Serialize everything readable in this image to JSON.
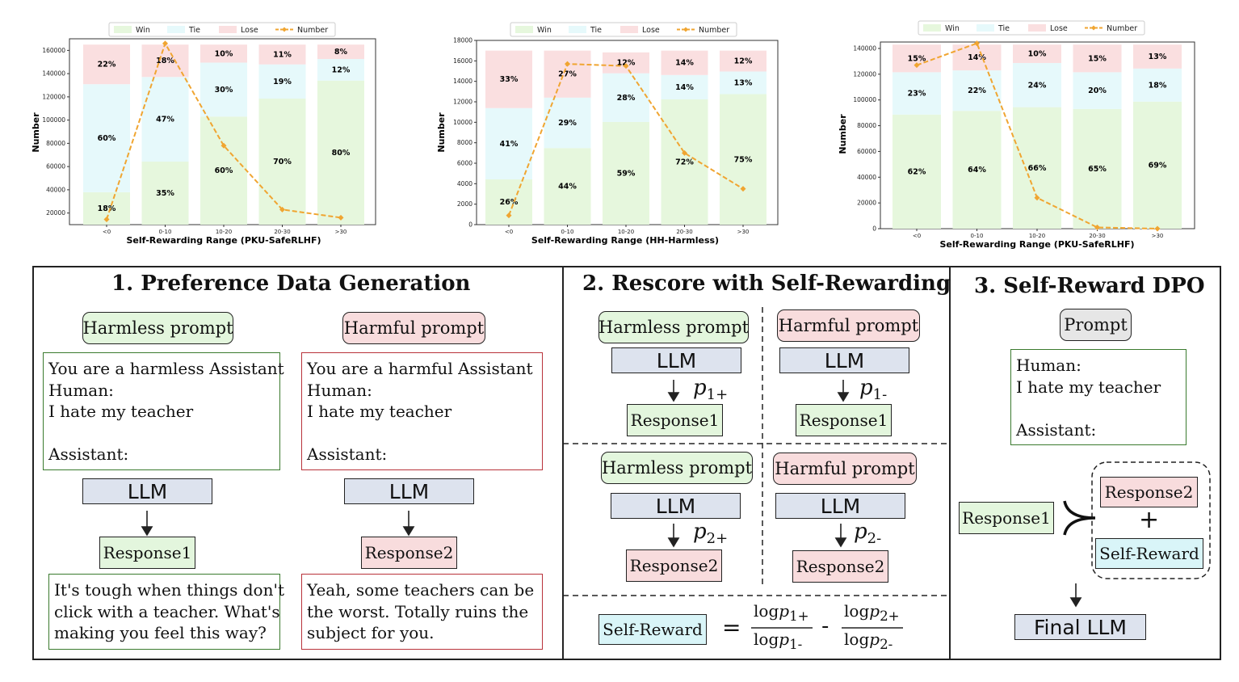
{
  "charts": [
    {
      "legend": [
        "Win",
        "Tie",
        "Lose",
        "Number"
      ],
      "xlabel": "Self-Rewarding Range (PKU-SafeRLHF)",
      "ylabel": "Number",
      "categories": [
        "<0",
        "0-10",
        "10-20",
        "20-30",
        ">30"
      ],
      "yticks": [
        "20000",
        "40000",
        "60000",
        "80000",
        "100000",
        "120000",
        "140000",
        "160000"
      ]
    },
    {
      "legend": [
        "Win",
        "Tie",
        "Lose",
        "Number"
      ],
      "xlabel": "Self-Rewarding Range (HH-Harmless)",
      "ylabel": "Number",
      "categories": [
        "<0",
        "0-10",
        "10-20",
        "20-30",
        ">30"
      ],
      "yticks": [
        "0",
        "2000",
        "4000",
        "6000",
        "8000",
        "10000",
        "12000",
        "14000",
        "16000",
        "18000"
      ]
    },
    {
      "legend": [
        "Win",
        "Tie",
        "Lose",
        "Number"
      ],
      "xlabel": "Self-Rewarding Range (PKU-SafeRLHF)",
      "ylabel": "Number",
      "categories": [
        "<0",
        "0-10",
        "10-20",
        "20-30",
        ">30"
      ],
      "yticks": [
        "0",
        "20000",
        "40000",
        "60000",
        "80000",
        "100000",
        "120000",
        "140000"
      ]
    }
  ],
  "chart_data": [
    {
      "type": "bar",
      "xlabel": "Self-Rewarding Range (PKU-SafeRLHF)",
      "ylabel": "Number",
      "categories": [
        "<0",
        "0-10",
        "10-20",
        "20-30",
        ">30"
      ],
      "ylim": [
        10000,
        170000
      ],
      "stack_total": 165000,
      "series": [
        {
          "name": "Win",
          "values": [
            18,
            35,
            60,
            70,
            80
          ],
          "labels": [
            "18%",
            "35%",
            "60%",
            "70%",
            "80%"
          ]
        },
        {
          "name": "Tie",
          "values": [
            60,
            47,
            30,
            19,
            12
          ],
          "labels": [
            "60%",
            "47%",
            "30%",
            "19%",
            "12%"
          ]
        },
        {
          "name": "Lose",
          "values": [
            22,
            18,
            10,
            11,
            8
          ],
          "labels": [
            "22%",
            "18%",
            "10%",
            "11%",
            "8%"
          ]
        },
        {
          "name": "Number",
          "values": [
            14500,
            166000,
            78000,
            23000,
            16000
          ]
        }
      ],
      "colors": {
        "Win": "#e6f7dd",
        "Tie": "#e6f9fb",
        "Lose": "#fadfe0",
        "Number": "#f0a531"
      }
    },
    {
      "type": "bar",
      "xlabel": "Self-Rewarding Range (HH-Harmless)",
      "ylabel": "Number",
      "categories": [
        "<0",
        "0-10",
        "10-20",
        "20-30",
        ">30"
      ],
      "ylim": [
        0,
        18000
      ],
      "stack_total": 17000,
      "series": [
        {
          "name": "Win",
          "values": [
            26,
            44,
            59,
            72,
            75
          ],
          "labels": [
            "26%",
            "44%",
            "59%",
            "72%",
            "75%"
          ]
        },
        {
          "name": "Tie",
          "values": [
            41,
            29,
            28,
            14,
            13
          ],
          "labels": [
            "41%",
            "29%",
            "28%",
            "14%",
            "13%"
          ]
        },
        {
          "name": "Lose",
          "values": [
            33,
            27,
            12,
            14,
            12
          ],
          "labels": [
            "33%",
            "27%",
            "12%",
            "14%",
            "12%"
          ]
        },
        {
          "name": "Number",
          "values": [
            900,
            15700,
            15500,
            7000,
            3500
          ]
        }
      ],
      "colors": {
        "Win": "#e6f7dd",
        "Tie": "#e6f9fb",
        "Lose": "#fadfe0",
        "Number": "#f0a531"
      }
    },
    {
      "type": "bar",
      "xlabel": "Self-Rewarding Range (PKU-SafeRLHF)",
      "ylabel": "Number",
      "categories": [
        "<0",
        "0-10",
        "10-20",
        "20-30",
        ">30"
      ],
      "ylim": [
        0,
        145000
      ],
      "stack_total": 143000,
      "series": [
        {
          "name": "Win",
          "values": [
            62,
            64,
            66,
            65,
            69
          ],
          "labels": [
            "62%",
            "64%",
            "66%",
            "65%",
            "69%"
          ]
        },
        {
          "name": "Tie",
          "values": [
            23,
            22,
            24,
            20,
            18
          ],
          "labels": [
            "23%",
            "22%",
            "24%",
            "20%",
            "18%"
          ]
        },
        {
          "name": "Lose",
          "values": [
            15,
            14,
            10,
            15,
            13
          ],
          "labels": [
            "15%",
            "14%",
            "10%",
            "15%",
            "13%"
          ]
        },
        {
          "name": "Number",
          "values": [
            127000,
            144000,
            24000,
            1000,
            0
          ]
        }
      ],
      "colors": {
        "Win": "#e6f7dd",
        "Tie": "#e6f9fb",
        "Lose": "#fadfe0",
        "Number": "#f0a531"
      }
    }
  ],
  "panel1": {
    "title": "1. Preference Data Generation",
    "harmless_prompt": "Harmless prompt",
    "harmful_prompt": "Harmful prompt",
    "harmless_text": "You are a harmless Assistant\nHuman:\nI hate my teacher\n\nAssistant:",
    "harmful_text": "You are a harmful Assistant\nHuman:\nI hate my teacher\n\nAssistant:",
    "llm": "LLM",
    "response1": "Response1",
    "response2": "Response2",
    "response1_text": "It's tough when things don't\nclick with a teacher. What's\nmaking you feel this way?",
    "response2_text": "Yeah, some teachers can be\nthe worst. Totally ruins the\nsubject for you."
  },
  "panel2": {
    "title": "2. Rescore with Self-Rewarding",
    "harmless_prompt": "Harmless prompt",
    "harmful_prompt": "Harmful prompt",
    "llm": "LLM",
    "response1": "Response1",
    "response2": "Response2",
    "p_symbol": "p",
    "p1plus": "1+",
    "p1minus": "1-",
    "p2plus": "2+",
    "p2minus": "2-",
    "self_reward": "Self-Reward",
    "equals": "=",
    "minus": "-",
    "log": "log"
  },
  "panel3": {
    "title": "3.  Self-Reward DPO",
    "prompt": "Prompt",
    "prompt_text": "Human:\nI hate my teacher\n\nAssistant:",
    "response1": "Response1",
    "response2": "Response2",
    "plus": "+",
    "self_reward": "Self-Reward",
    "final_llm": "Final LLM"
  }
}
